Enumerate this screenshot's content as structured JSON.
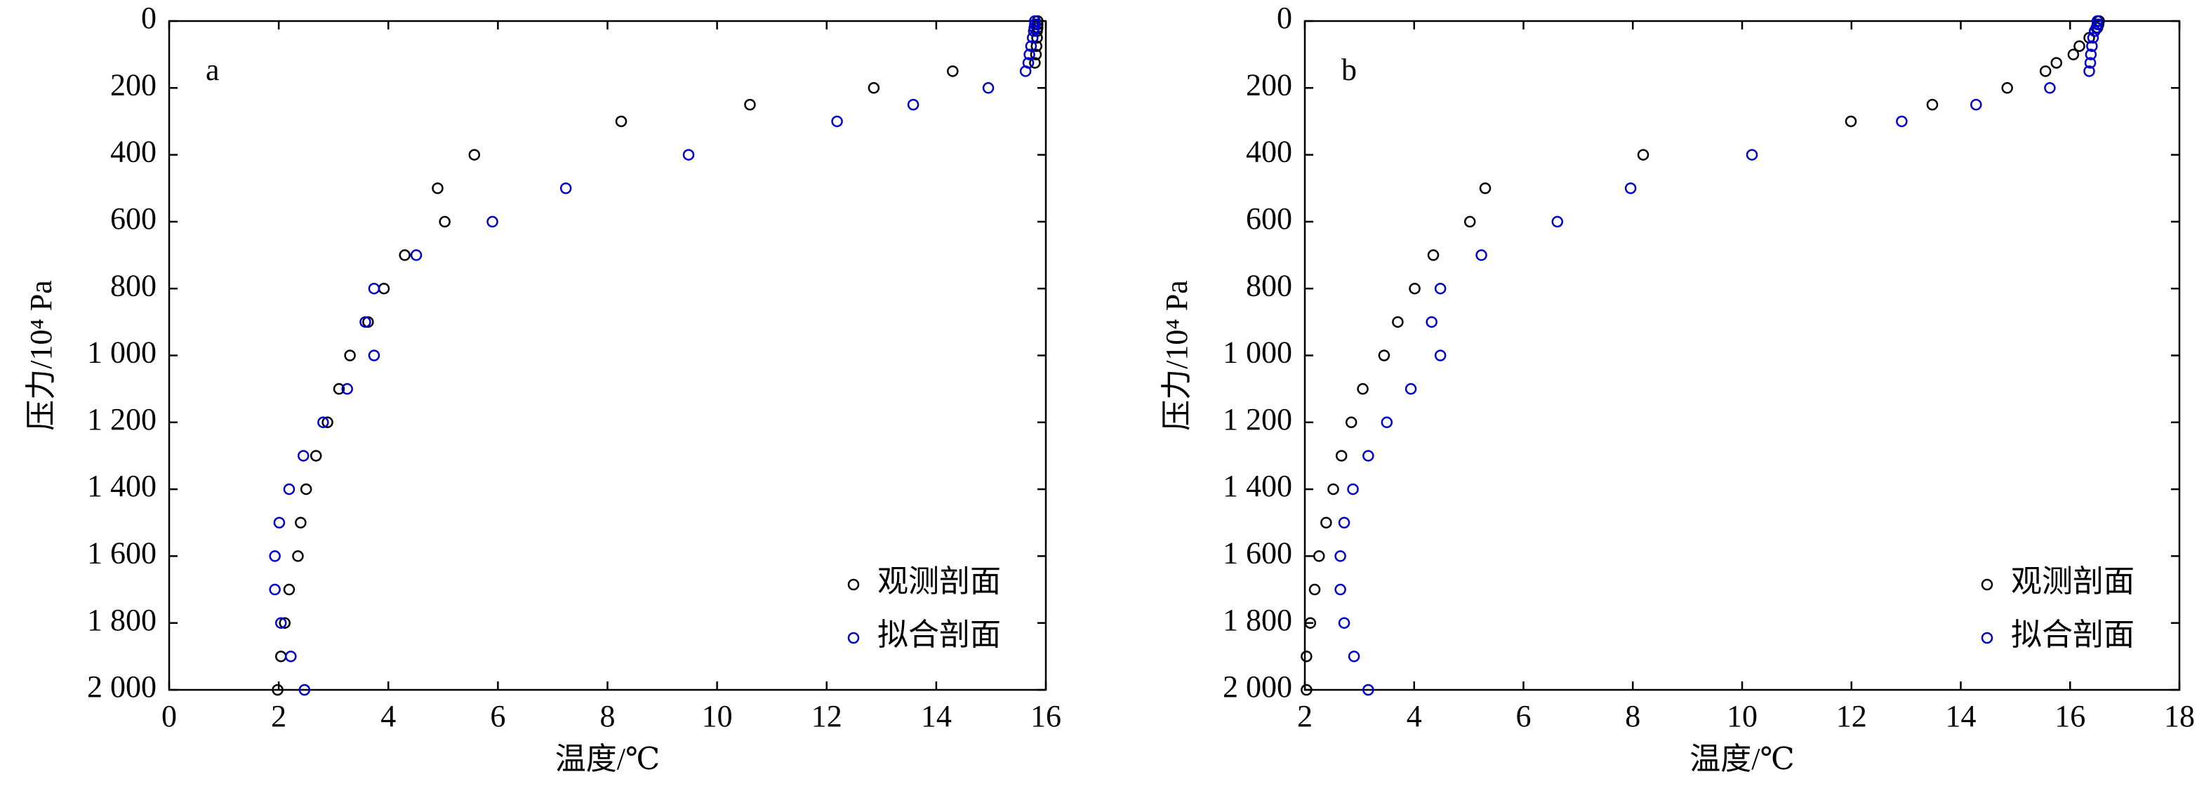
{
  "chart_data": [
    {
      "type": "scatter",
      "panel_label": "a",
      "xlabel": "温度/℃",
      "ylabel": "压力/10⁴ Pa",
      "xlim": [
        0,
        16
      ],
      "xticks": [
        0,
        2,
        4,
        6,
        8,
        10,
        12,
        14,
        16
      ],
      "ylim": [
        2000,
        0
      ],
      "yticks": [
        0,
        200,
        400,
        600,
        800,
        {
          "value": 1000,
          "label": "1 000"
        },
        {
          "value": 1200,
          "label": "1 200"
        },
        {
          "value": 1400,
          "label": "1 400"
        },
        {
          "value": 1600,
          "label": "1 600"
        },
        {
          "value": 1800,
          "label": "1 800"
        },
        {
          "value": 2000,
          "label": "2 000"
        }
      ],
      "legend": "lower right",
      "series": [
        {
          "name": "观测剖面",
          "color": "#000000",
          "x": [
            15.85,
            15.85,
            15.85,
            15.84,
            15.84,
            15.83,
            15.82,
            15.8,
            14.3,
            12.86,
            10.6,
            8.25,
            5.57,
            4.9,
            5.03,
            4.3,
            3.92,
            3.63,
            3.3,
            3.1,
            2.89,
            2.68,
            2.5,
            2.4,
            2.35,
            2.19,
            2.11,
            2.04,
            1.98
          ],
          "values": [
            0,
            10,
            20,
            30,
            50,
            75,
            100,
            125,
            150,
            200,
            250,
            300,
            400,
            500,
            600,
            700,
            800,
            900,
            1000,
            1100,
            1200,
            1300,
            1400,
            1500,
            1600,
            1700,
            1800,
            1900,
            2000
          ]
        },
        {
          "name": "拟合剖面",
          "color": "#0000cc",
          "x": [
            15.8,
            15.8,
            15.79,
            15.78,
            15.76,
            15.73,
            15.7,
            15.68,
            15.63,
            14.95,
            13.58,
            12.19,
            9.48,
            7.24,
            5.9,
            4.51,
            3.74,
            3.58,
            3.74,
            3.25,
            2.81,
            2.45,
            2.19,
            2.01,
            1.93,
            1.93,
            2.04,
            2.22,
            2.47
          ],
          "values": [
            0,
            10,
            20,
            30,
            50,
            75,
            100,
            125,
            150,
            200,
            250,
            300,
            400,
            500,
            600,
            700,
            800,
            900,
            1000,
            1100,
            1200,
            1300,
            1400,
            1500,
            1600,
            1700,
            1800,
            1900,
            2000
          ]
        }
      ]
    },
    {
      "type": "scatter",
      "panel_label": "b",
      "xlabel": "温度/℃",
      "ylabel": "压力/10⁴ Pa",
      "xlim": [
        2,
        18
      ],
      "xticks": [
        2,
        4,
        6,
        8,
        10,
        12,
        14,
        16,
        18
      ],
      "ylim": [
        2000,
        0
      ],
      "yticks": [
        0,
        200,
        400,
        600,
        800,
        {
          "value": 1000,
          "label": "1 000"
        },
        {
          "value": 1200,
          "label": "1 200"
        },
        {
          "value": 1400,
          "label": "1 400"
        },
        {
          "value": 1600,
          "label": "1 600"
        },
        {
          "value": 1800,
          "label": "1 800"
        },
        {
          "value": 2000,
          "label": "2 000"
        }
      ],
      "legend": "lower right",
      "series": [
        {
          "name": "观测剖面",
          "color": "#000000",
          "x": [
            16.53,
            16.52,
            16.5,
            16.45,
            16.35,
            16.17,
            16.06,
            15.75,
            15.55,
            14.85,
            13.48,
            11.99,
            8.19,
            5.3,
            5.02,
            4.35,
            4.01,
            3.7,
            3.45,
            3.06,
            2.85,
            2.67,
            2.52,
            2.39,
            2.26,
            2.18,
            2.1,
            2.03,
            2.03
          ],
          "values": [
            0,
            10,
            20,
            30,
            50,
            75,
            100,
            125,
            150,
            200,
            250,
            300,
            400,
            500,
            600,
            700,
            800,
            900,
            1000,
            1100,
            1200,
            1300,
            1400,
            1500,
            1600,
            1700,
            1800,
            1900,
            2000
          ]
        },
        {
          "name": "拟合剖面",
          "color": "#0000cc",
          "x": [
            16.5,
            16.5,
            16.48,
            16.45,
            16.42,
            16.4,
            16.38,
            16.37,
            16.35,
            15.63,
            14.28,
            12.92,
            10.18,
            7.96,
            6.62,
            5.23,
            4.48,
            4.32,
            4.48,
            3.94,
            3.5,
            3.16,
            2.88,
            2.72,
            2.65,
            2.65,
            2.72,
            2.9,
            3.16
          ],
          "values": [
            0,
            10,
            20,
            30,
            50,
            75,
            100,
            125,
            150,
            200,
            250,
            300,
            400,
            500,
            600,
            700,
            800,
            900,
            1000,
            1100,
            1200,
            1300,
            1400,
            1500,
            1600,
            1700,
            1800,
            1900,
            2000
          ]
        }
      ]
    }
  ]
}
